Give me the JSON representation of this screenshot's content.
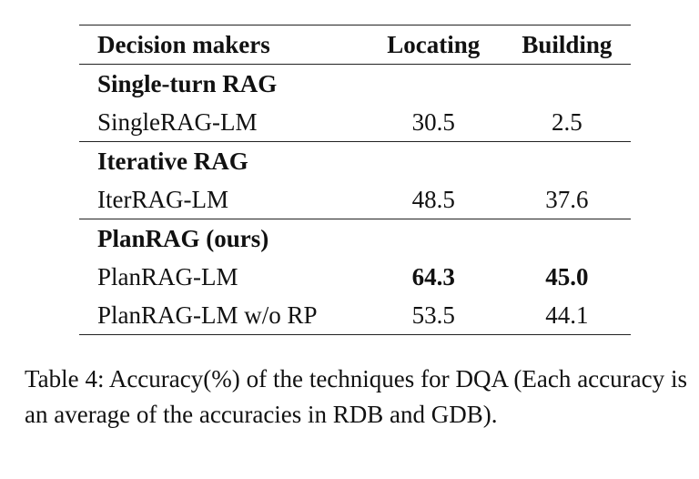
{
  "table": {
    "headers": [
      "Decision makers",
      "Locating",
      "Building"
    ],
    "groups": [
      {
        "title": "Single-turn RAG",
        "rows": [
          {
            "name": "SingleRAG-LM",
            "locating": "30.5",
            "building": "2.5"
          }
        ]
      },
      {
        "title": "Iterative RAG",
        "rows": [
          {
            "name": "IterRAG-LM",
            "locating": "48.5",
            "building": "37.6"
          }
        ]
      },
      {
        "title": "PlanRAG (ours)",
        "rows": [
          {
            "name": "PlanRAG-LM",
            "locating": "64.3",
            "building": "45.0"
          },
          {
            "name": "PlanRAG-LM w/o RP",
            "locating": "53.5",
            "building": "44.1"
          }
        ]
      }
    ]
  },
  "caption": "Table 4: Accuracy(%) of the techniques for DQA (Each accuracy is an average of the accuracies in RDB and GDB)."
}
